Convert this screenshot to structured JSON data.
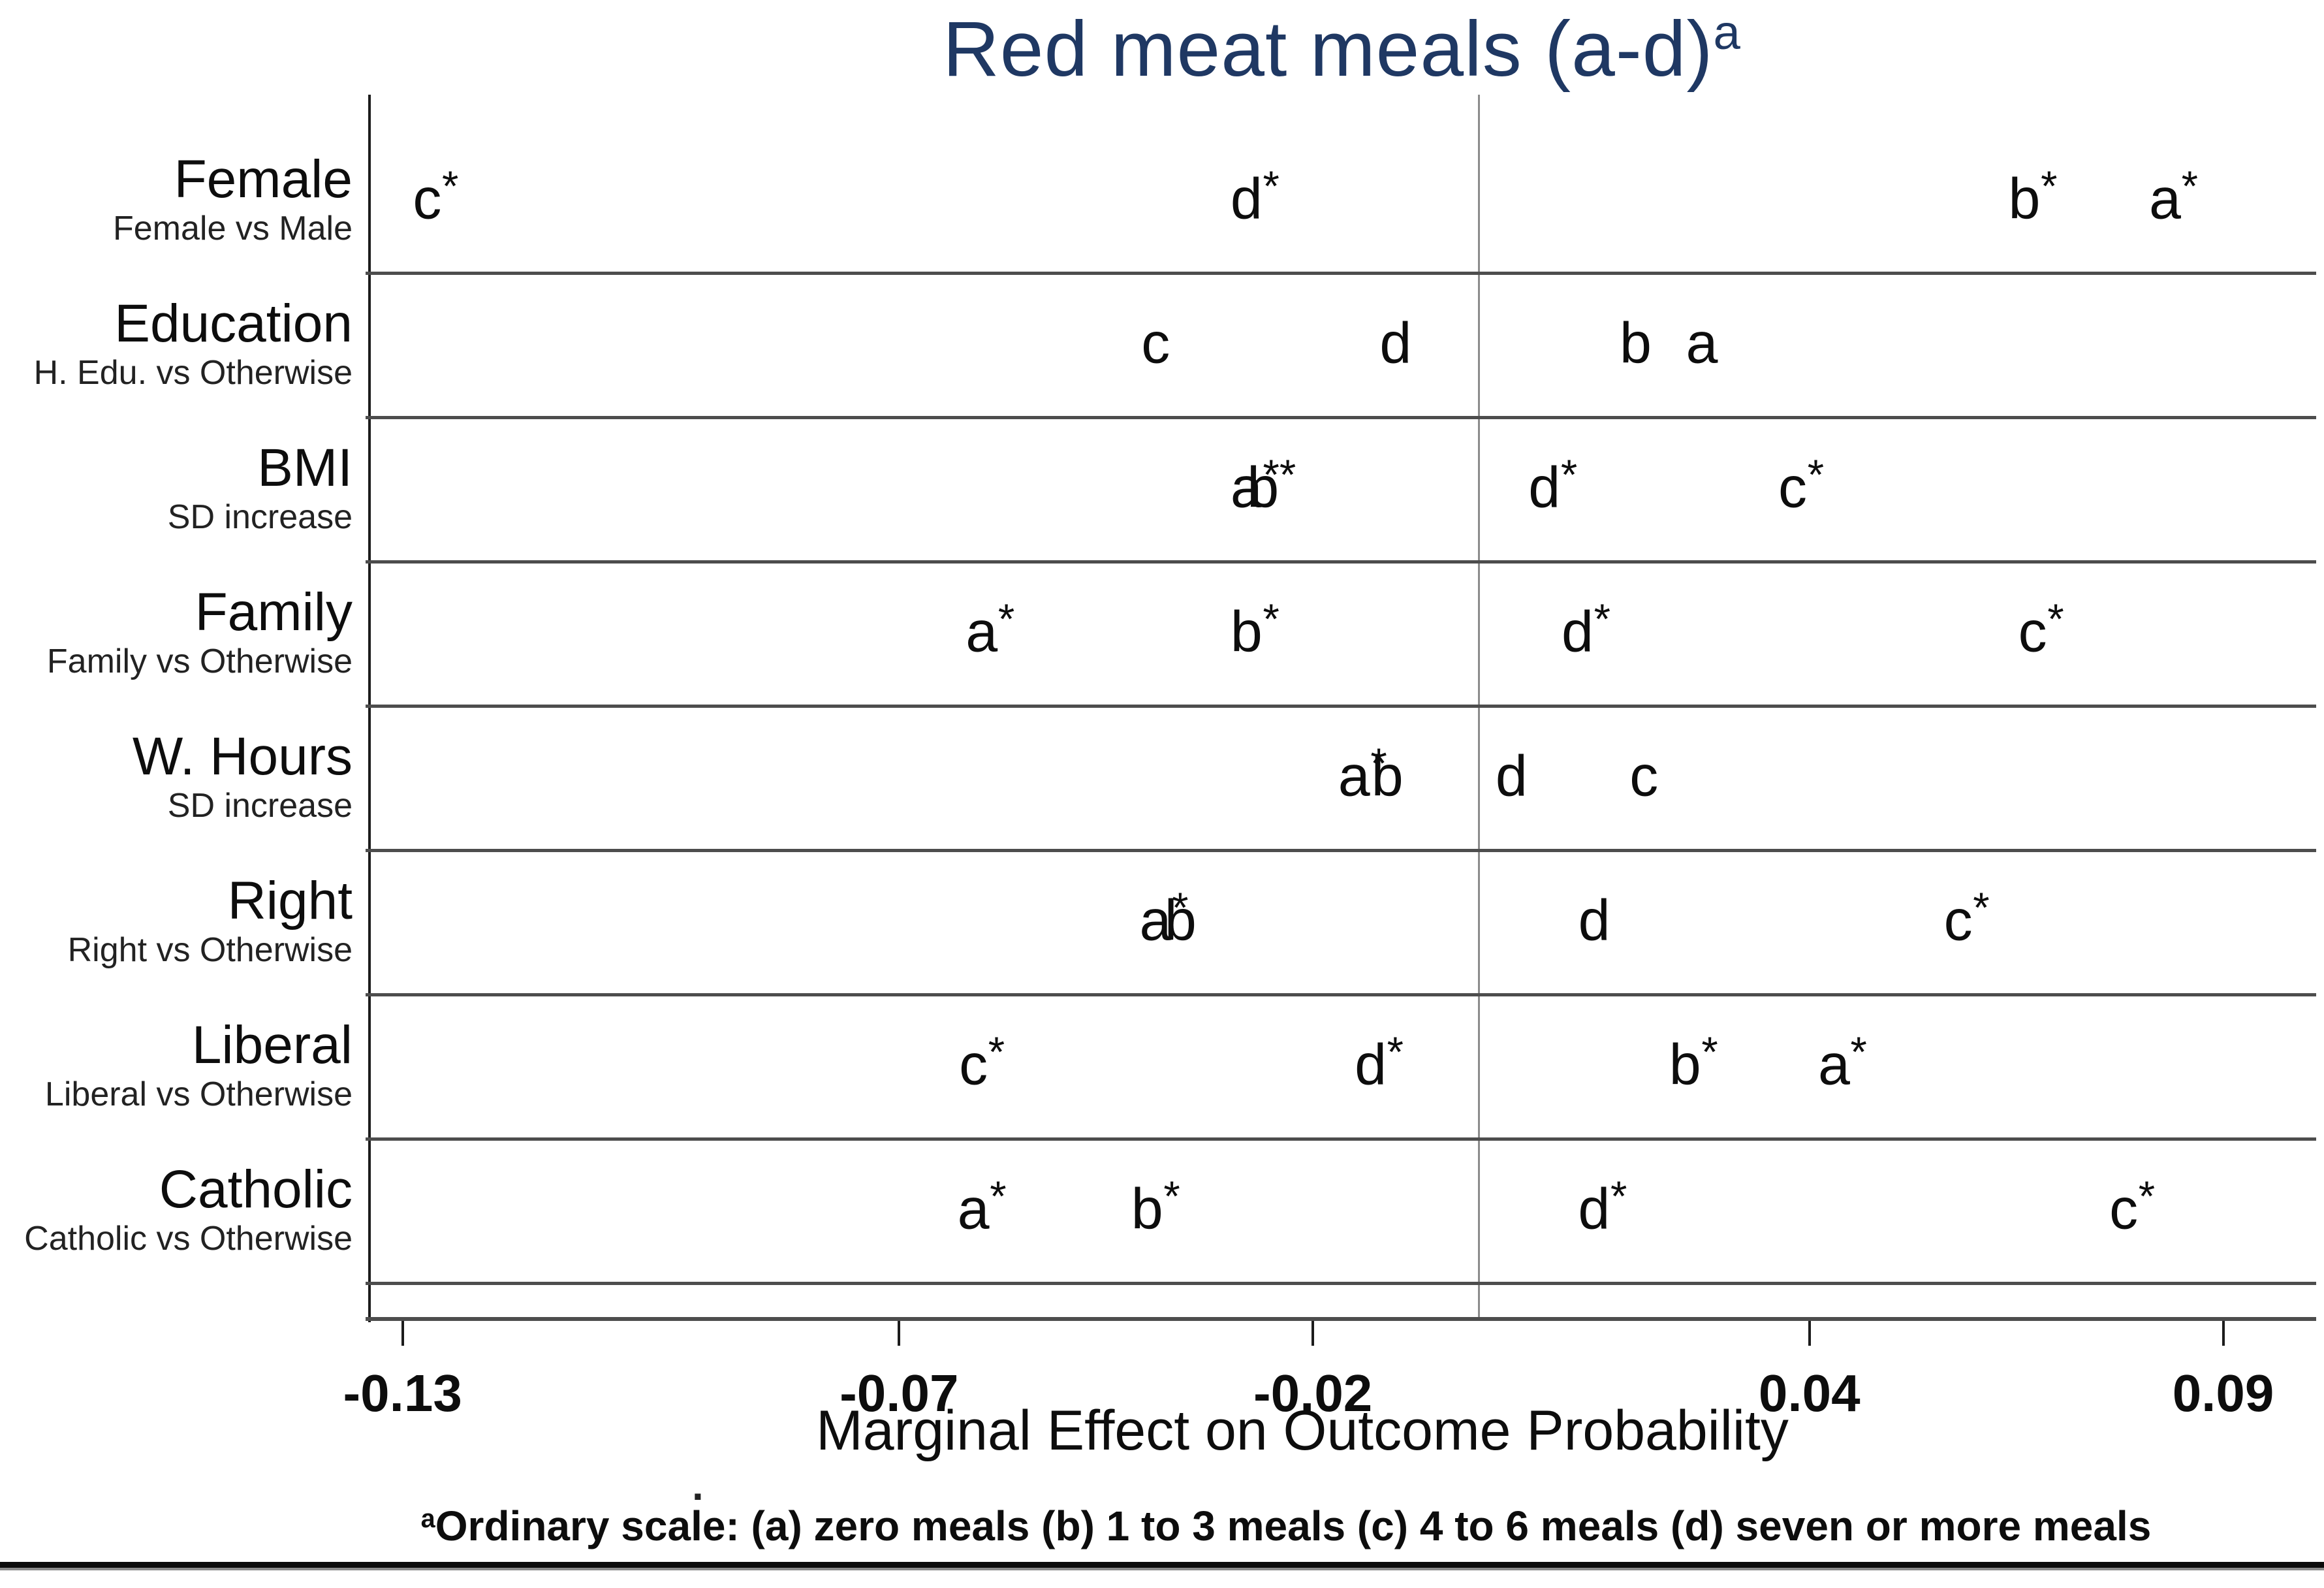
{
  "chart_data": {
    "type": "scatter",
    "title": "Red meat meals (a-d)",
    "title_superscript": "a",
    "xlabel": "Marginal Effect on Outcome Probability",
    "footnote_superscript": "a",
    "footnote": "Ordinary scale: (a) zero meals (b) 1 to 3 meals (c) 4 to 6 meals (d) seven or more meals",
    "stray_mark": ".",
    "x_domain": [
      -0.134,
      0.101
    ],
    "reference_line_x": 0,
    "grid": "row-separators-only",
    "legend_position": "none",
    "x_ticks": [
      {
        "value": -0.13,
        "label": "-0.13"
      },
      {
        "value": -0.07,
        "label": "-0.07"
      },
      {
        "value": -0.02,
        "label": "-0.02"
      },
      {
        "value": 0.04,
        "label": "0.04"
      },
      {
        "value": 0.09,
        "label": "0.09"
      }
    ],
    "rows": [
      {
        "label": "Female",
        "sublabel": "Female vs Male",
        "points": [
          {
            "marker": "c",
            "significant": true,
            "x": -0.126
          },
          {
            "marker": "d",
            "significant": true,
            "x": -0.027
          },
          {
            "marker": "b",
            "significant": true,
            "x": 0.067
          },
          {
            "marker": "a",
            "significant": true,
            "x": 0.084
          }
        ]
      },
      {
        "label": "Education",
        "sublabel": "H. Edu. vs Otherwise",
        "points": [
          {
            "marker": "c",
            "significant": false,
            "x": -0.039
          },
          {
            "marker": "d",
            "significant": false,
            "x": -0.01
          },
          {
            "marker": "b",
            "significant": false,
            "x": 0.019
          },
          {
            "marker": "a",
            "significant": false,
            "x": 0.027
          }
        ]
      },
      {
        "label": "BMI",
        "sublabel": "SD increase",
        "points": [
          {
            "marker": "a",
            "significant": true,
            "x": -0.027
          },
          {
            "marker": "b",
            "significant": true,
            "x": -0.025
          },
          {
            "marker": "d",
            "significant": true,
            "x": 0.009
          },
          {
            "marker": "c",
            "significant": true,
            "x": 0.039
          }
        ]
      },
      {
        "label": "Family",
        "sublabel": "Family vs Otherwise",
        "points": [
          {
            "marker": "a",
            "significant": true,
            "x": -0.059
          },
          {
            "marker": "b",
            "significant": true,
            "x": -0.027
          },
          {
            "marker": "d",
            "significant": true,
            "x": 0.013
          },
          {
            "marker": "c",
            "significant": true,
            "x": 0.068
          }
        ]
      },
      {
        "label": "W. Hours",
        "sublabel": "SD increase",
        "points": [
          {
            "marker": "a",
            "significant": true,
            "x": -0.014
          },
          {
            "marker": "b",
            "significant": false,
            "x": -0.011
          },
          {
            "marker": "d",
            "significant": false,
            "x": 0.004
          },
          {
            "marker": "c",
            "significant": false,
            "x": 0.02
          }
        ]
      },
      {
        "label": "Right",
        "sublabel": "Right vs Otherwise",
        "points": [
          {
            "marker": "a",
            "significant": true,
            "x": -0.038
          },
          {
            "marker": "b",
            "significant": false,
            "x": -0.036
          },
          {
            "marker": "d",
            "significant": false,
            "x": 0.014
          },
          {
            "marker": "c",
            "significant": true,
            "x": 0.059
          }
        ]
      },
      {
        "label": "Liberal",
        "sublabel": "Liberal vs Otherwise",
        "points": [
          {
            "marker": "c",
            "significant": true,
            "x": -0.06
          },
          {
            "marker": "d",
            "significant": true,
            "x": -0.012
          },
          {
            "marker": "b",
            "significant": true,
            "x": 0.026
          },
          {
            "marker": "a",
            "significant": true,
            "x": 0.044
          }
        ]
      },
      {
        "label": "Catholic",
        "sublabel": "Catholic vs Otherwise",
        "points": [
          {
            "marker": "a",
            "significant": true,
            "x": -0.06
          },
          {
            "marker": "b",
            "significant": true,
            "x": -0.039
          },
          {
            "marker": "d",
            "significant": true,
            "x": 0.015
          },
          {
            "marker": "c",
            "significant": true,
            "x": 0.079
          }
        ]
      }
    ]
  },
  "colors": {
    "title": "#1f3863",
    "text": "#0d0d0d",
    "separator": "#4d4d4d",
    "axis": "#1c1c1c",
    "reference_line": "#8c8c8c",
    "background": "#ffffff"
  }
}
